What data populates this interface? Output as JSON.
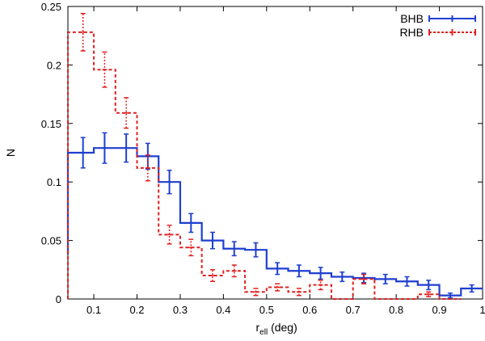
{
  "chart_data": {
    "type": "histogram",
    "title": "",
    "xlabel": {
      "main": "r",
      "sub": "ell",
      "suffix": " (deg)"
    },
    "ylabel": "N",
    "xlim": [
      0.04,
      1.0
    ],
    "ylim": [
      0,
      0.25
    ],
    "x_ticks": [
      {
        "value": 0.1,
        "label": "0.1"
      },
      {
        "value": 0.2,
        "label": "0.2"
      },
      {
        "value": 0.3,
        "label": "0.3"
      },
      {
        "value": 0.4,
        "label": "0.4"
      },
      {
        "value": 0.5,
        "label": "0.5"
      },
      {
        "value": 0.6,
        "label": "0.6"
      },
      {
        "value": 0.7,
        "label": "0.7"
      },
      {
        "value": 0.8,
        "label": "0.8"
      },
      {
        "value": 0.9,
        "label": "0.9"
      },
      {
        "value": 1.0,
        "label": "1"
      }
    ],
    "y_ticks": [
      {
        "value": 0,
        "label": "0"
      },
      {
        "value": 0.05,
        "label": "0.05"
      },
      {
        "value": 0.1,
        "label": "0.1"
      },
      {
        "value": 0.15,
        "label": "0.15"
      },
      {
        "value": 0.2,
        "label": "0.2"
      },
      {
        "value": 0.25,
        "label": "0.25"
      }
    ],
    "bin_edges": [
      0.05,
      0.1,
      0.15,
      0.2,
      0.25,
      0.3,
      0.35,
      0.4,
      0.45,
      0.5,
      0.55,
      0.6,
      0.65,
      0.7,
      0.75,
      0.8,
      0.85,
      0.9,
      0.95,
      1.0
    ],
    "series": [
      {
        "name": "BHB",
        "color": "#1f3fcf",
        "style": "solid",
        "left_edge_value": 0.038,
        "values": [
          0.118,
          0.125,
          0.129,
          0.129,
          0.122,
          0.1,
          0.065,
          0.05,
          0.043,
          0.042,
          0.026,
          0.024,
          0.022,
          0.019,
          0.018,
          0.017,
          0.015,
          0.012,
          0.003,
          0.009
        ],
        "errors": [
          0.012,
          0.013,
          0.013,
          0.012,
          0.011,
          0.01,
          0.008,
          0.007,
          0.006,
          0.006,
          0.005,
          0.005,
          0.005,
          0.004,
          0.004,
          0.004,
          0.004,
          0.004,
          0.002,
          0.003
        ],
        "centers": [
          0.05,
          0.075,
          0.125,
          0.175,
          0.225,
          0.275,
          0.325,
          0.375,
          0.425,
          0.475,
          0.525,
          0.575,
          0.625,
          0.675,
          0.725,
          0.775,
          0.825,
          0.875,
          0.925,
          0.975
        ]
      },
      {
        "name": "RHB",
        "color": "#e02020",
        "style": "dashed",
        "left_edge_value": 0.0,
        "values": [
          0.228,
          0.196,
          0.159,
          0.112,
          0.055,
          0.044,
          0.02,
          0.024,
          0.006,
          0.01,
          0.006,
          0.012,
          0.0,
          0.017,
          0.0,
          0.0,
          0.004,
          0.0
        ],
        "errors": [
          0.016,
          0.015,
          0.013,
          0.011,
          0.008,
          0.007,
          0.005,
          0.005,
          0.003,
          0.003,
          0.003,
          0.004,
          0.0,
          0.004,
          0.0,
          0.0,
          0.002,
          0.0
        ],
        "centers": [
          0.075,
          0.125,
          0.175,
          0.225,
          0.275,
          0.325,
          0.375,
          0.425,
          0.475,
          0.525,
          0.575,
          0.625,
          0.675,
          0.725,
          0.775,
          0.825,
          0.875,
          0.925
        ]
      }
    ],
    "legend": {
      "position": "top-right",
      "entries": [
        "BHB",
        "RHB"
      ]
    }
  }
}
